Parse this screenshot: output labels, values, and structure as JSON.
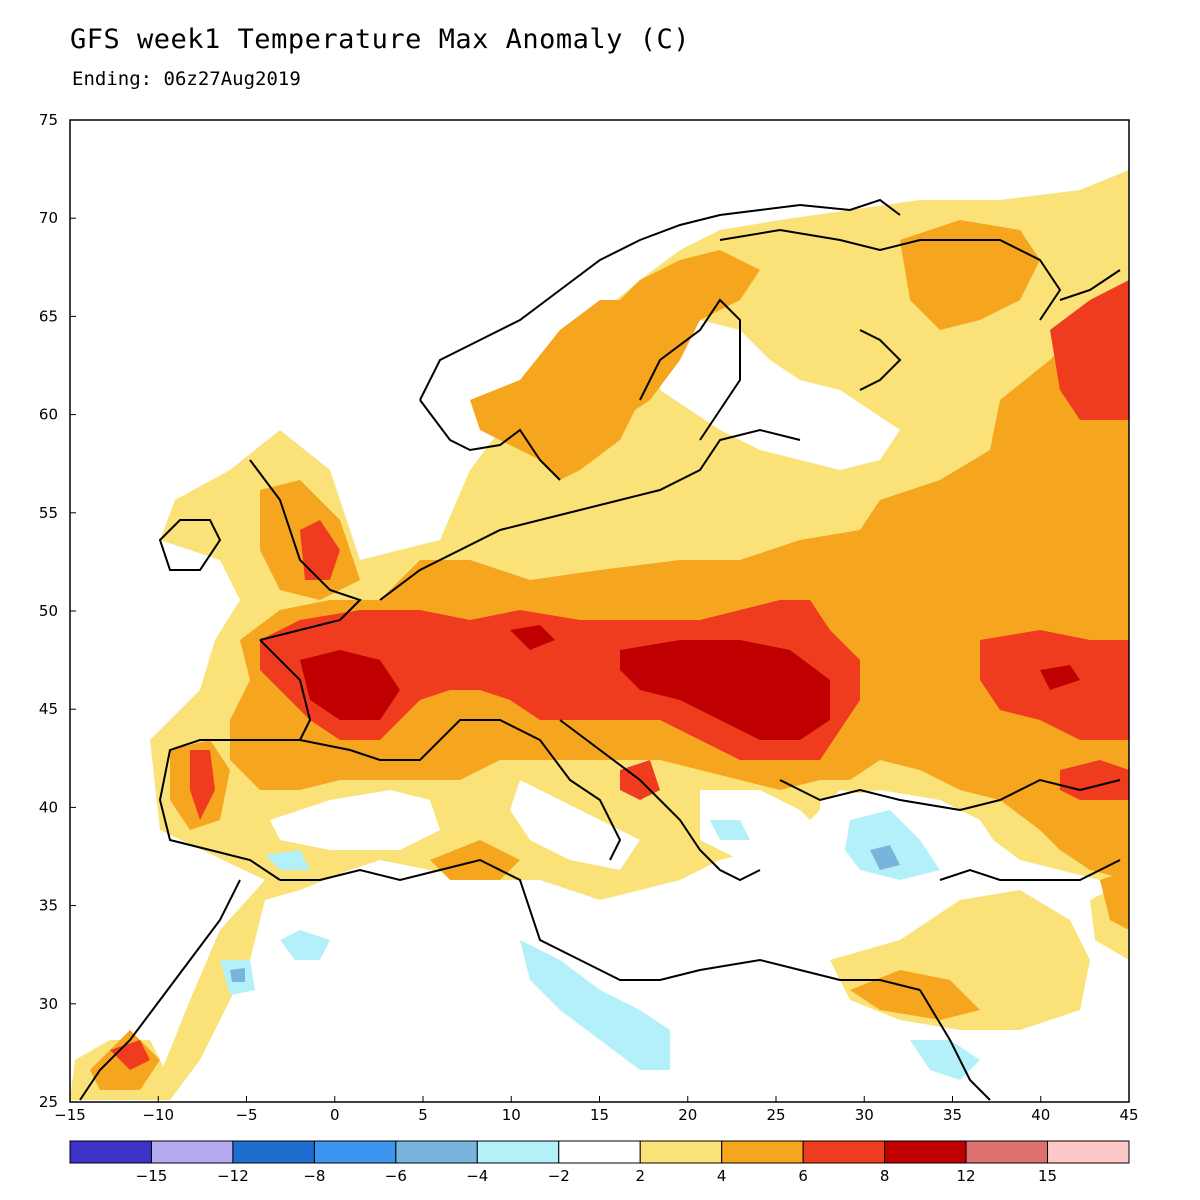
{
  "title": "GFS week1 Temperature Max Anomaly (C)",
  "subtitle": "Ending: 06z27Aug2019",
  "map": {
    "lon_range": [
      -15,
      45
    ],
    "lat_range": [
      25,
      75
    ],
    "lon_ticks": [
      "−15",
      "−10",
      "−5",
      "0",
      "5",
      "10",
      "15",
      "20",
      "25",
      "30",
      "35",
      "40",
      "45"
    ],
    "lat_ticks": [
      "25",
      "30",
      "35",
      "40",
      "45",
      "50",
      "55",
      "60",
      "65",
      "70",
      "75"
    ]
  },
  "colorbar": {
    "colors": [
      "#3c32c8",
      "#b4aaf0",
      "#1e6ed2",
      "#3c96f0",
      "#78b4dc",
      "#b4f0fa",
      "#ffffff",
      "#fae178",
      "#f5a51e",
      "#f03c1e",
      "#c00000",
      "#e07070",
      "#ffc8c8"
    ],
    "labels": [
      "−15",
      "−12",
      "−8",
      "−6",
      "−4",
      "−2",
      "2",
      "4",
      "6",
      "8",
      "12",
      "15"
    ]
  }
}
